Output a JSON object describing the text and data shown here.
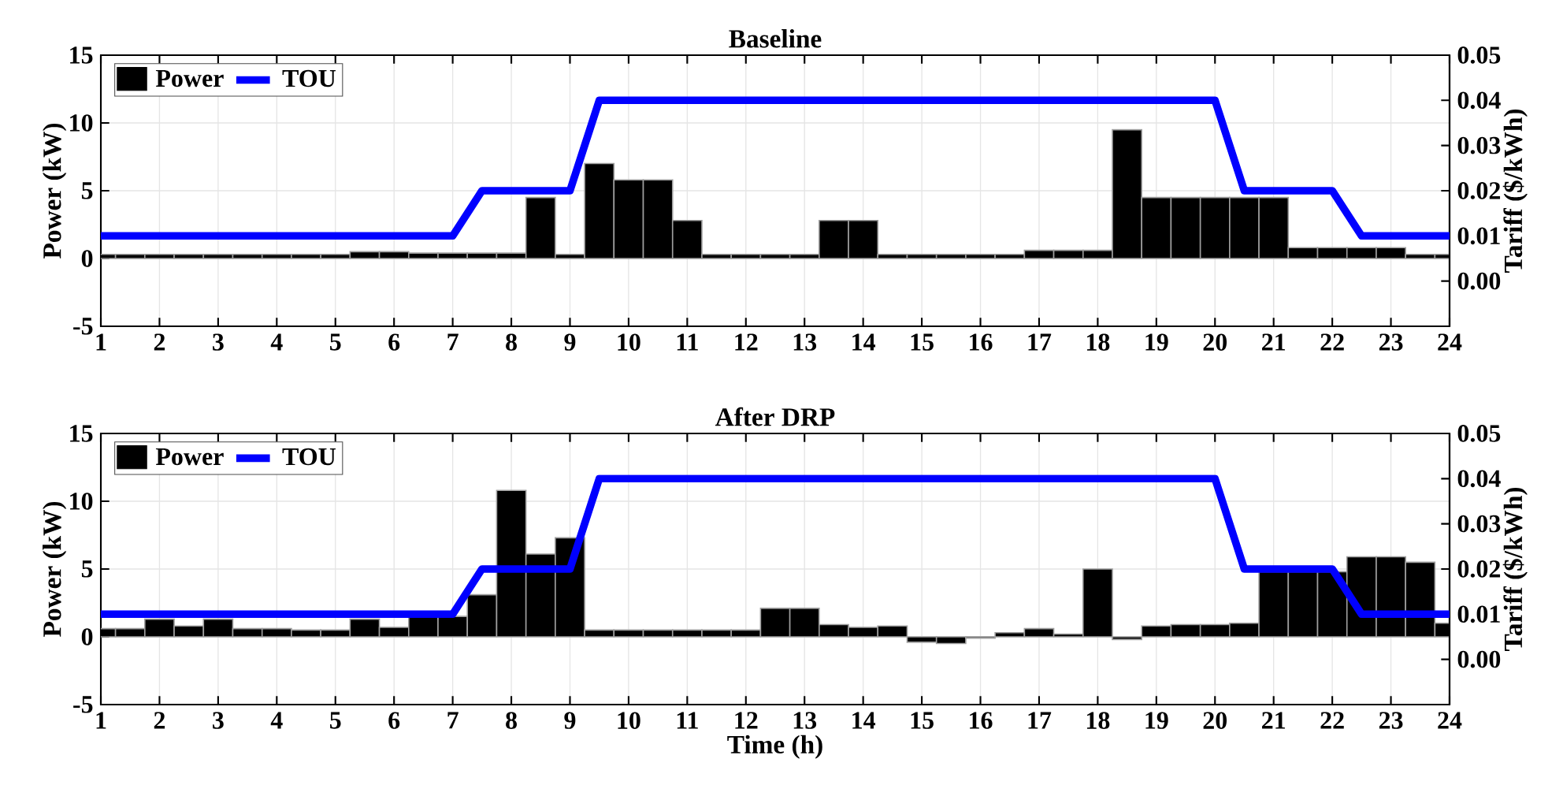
{
  "chart_data": [
    {
      "type": "bar",
      "title": "Baseline",
      "ylabel": "Power (kW)",
      "y2label": "Tariff ($/kWh)",
      "xlim": [
        1,
        24
      ],
      "xticks": [
        1,
        2,
        3,
        4,
        5,
        6,
        7,
        8,
        9,
        10,
        11,
        12,
        13,
        14,
        15,
        16,
        17,
        18,
        19,
        20,
        21,
        22,
        23,
        24
      ],
      "ylim": [
        -5,
        15
      ],
      "yticks": [
        -5,
        0,
        5,
        10,
        15
      ],
      "y2lim": [
        -0.01,
        0.05
      ],
      "y2ticks": [
        {
          "value": 0,
          "label": "0.00"
        },
        0.01,
        0.02,
        0.03,
        0.04,
        0.05
      ],
      "grid": true,
      "legend": "top left",
      "series": [
        {
          "name": "Power",
          "color": "#000000",
          "x": [
            1,
            1.5,
            2,
            2.5,
            3,
            3.5,
            4,
            4.5,
            5,
            5.5,
            6,
            6.5,
            7,
            7.5,
            8,
            8.5,
            9,
            9.5,
            10,
            10.5,
            11,
            11.5,
            12,
            12.5,
            13,
            13.5,
            14,
            14.5,
            15,
            15.5,
            16,
            16.5,
            17,
            17.5,
            18,
            18.5,
            19,
            19.5,
            20,
            20.5,
            21,
            21.5,
            22,
            22.5,
            23,
            23.5,
            24
          ],
          "values": [
            0.3,
            0.3,
            0.3,
            0.3,
            0.3,
            0.3,
            0.3,
            0.3,
            0.3,
            0.5,
            0.5,
            0.4,
            0.4,
            0.4,
            0.4,
            4.5,
            0.3,
            7.0,
            5.8,
            5.8,
            2.8,
            0.3,
            0.3,
            0.3,
            0.3,
            2.8,
            2.8,
            0.3,
            0.3,
            0.3,
            0.3,
            0.3,
            0.6,
            0.6,
            0.6,
            9.5,
            4.5,
            4.5,
            4.5,
            4.5,
            4.5,
            0.8,
            0.8,
            0.8,
            0.8,
            0.3,
            0.3
          ]
        },
        {
          "name": "TOU",
          "type": "line",
          "axis": "y2",
          "color": "#0000ff",
          "x": [
            1,
            7,
            7.5,
            9,
            9.5,
            20,
            20.5,
            22,
            22.5,
            24
          ],
          "values": [
            0.01,
            0.01,
            0.02,
            0.02,
            0.04,
            0.04,
            0.02,
            0.02,
            0.01,
            0.01
          ]
        }
      ]
    },
    {
      "type": "bar",
      "title": "After DRP",
      "xlabel": "Time (h)",
      "ylabel": "Power (kW)",
      "y2label": "Tariff ($/kWh)",
      "xlim": [
        1,
        24
      ],
      "xticks": [
        1,
        2,
        3,
        4,
        5,
        6,
        7,
        8,
        9,
        10,
        11,
        12,
        13,
        14,
        15,
        16,
        17,
        18,
        19,
        20,
        21,
        22,
        23,
        24
      ],
      "ylim": [
        -5,
        15
      ],
      "yticks": [
        -5,
        0,
        5,
        10,
        15
      ],
      "y2lim": [
        -0.01,
        0.05
      ],
      "y2ticks": [
        {
          "value": 0,
          "label": "0.00"
        },
        0.01,
        0.02,
        0.03,
        0.04,
        0.05
      ],
      "grid": true,
      "legend": "top left",
      "series": [
        {
          "name": "Power",
          "color": "#000000",
          "x": [
            1,
            1.5,
            2,
            2.5,
            3,
            3.5,
            4,
            4.5,
            5,
            5.5,
            6,
            6.5,
            7,
            7.5,
            8,
            8.5,
            9,
            9.5,
            10,
            10.5,
            11,
            11.5,
            12,
            12.5,
            13,
            13.5,
            14,
            14.5,
            15,
            15.5,
            16,
            16.5,
            17,
            17.5,
            18,
            18.5,
            19,
            19.5,
            20,
            20.5,
            21,
            21.5,
            22,
            22.5,
            23,
            23.5,
            24
          ],
          "values": [
            0.6,
            0.6,
            1.3,
            0.8,
            1.3,
            0.6,
            0.6,
            0.5,
            0.5,
            1.3,
            0.7,
            1.5,
            1.5,
            3.1,
            10.8,
            6.1,
            7.3,
            0.5,
            0.5,
            0.5,
            0.5,
            0.5,
            0.5,
            2.1,
            2.1,
            0.9,
            0.7,
            0.8,
            -0.4,
            -0.5,
            -0.1,
            0.3,
            0.6,
            0.2,
            5.0,
            -0.2,
            0.8,
            0.9,
            0.9,
            1.0,
            4.8,
            4.8,
            4.8,
            5.9,
            5.9,
            5.5,
            1.0
          ]
        },
        {
          "name": "TOU",
          "type": "line",
          "axis": "y2",
          "color": "#0000ff",
          "x": [
            1,
            7,
            7.5,
            9,
            9.5,
            20,
            20.5,
            22,
            22.5,
            24
          ],
          "values": [
            0.01,
            0.01,
            0.02,
            0.02,
            0.04,
            0.04,
            0.02,
            0.02,
            0.01,
            0.01
          ]
        }
      ]
    }
  ]
}
